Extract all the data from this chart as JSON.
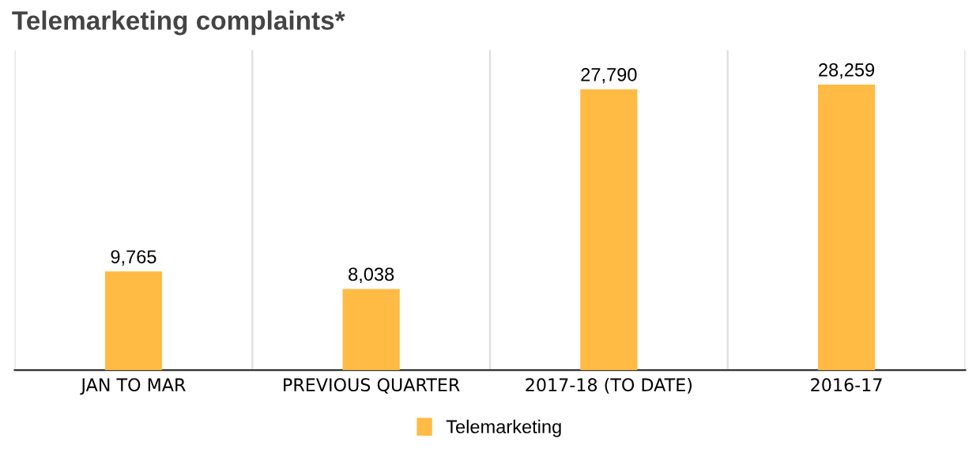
{
  "chart_data": {
    "type": "bar",
    "title": "Telemarketing complaints*",
    "categories": [
      "JAN TO MAR",
      "PREVIOUS QUARTER",
      "2017-18 (TO DATE)",
      "2016-17"
    ],
    "series": [
      {
        "name": "Telemarketing",
        "color": "#ffbb44",
        "values": [
          9765,
          8038,
          27790,
          28259
        ],
        "value_labels": [
          "9,765",
          "8,038",
          "27,790",
          "28,259"
        ]
      }
    ],
    "tick_labels": "x",
    "grid": "x",
    "legend": "bottom"
  }
}
